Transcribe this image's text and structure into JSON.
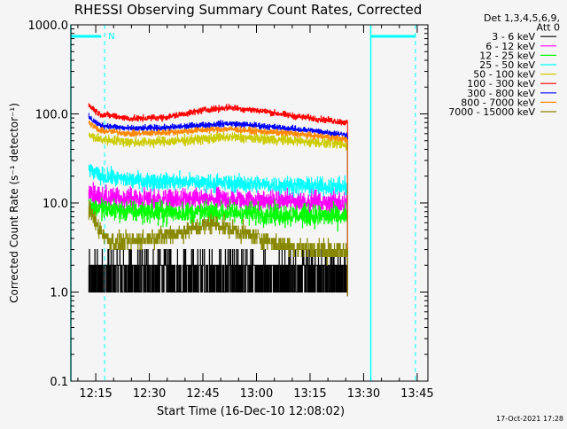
{
  "chart_data": {
    "type": "line",
    "title": "RHESSI Observing Summary Count Rates, Corrected",
    "xlabel": "Start Time (16-Dec-10 12:08:02)",
    "ylabel": "Corrected Count Rate (s⁻¹ detector⁻¹)",
    "y_scale": "log",
    "ylim": [
      0.1,
      1000
    ],
    "xlim": [
      "12:08:02",
      "13:48:00"
    ],
    "y_ticks": [
      {
        "value": 0.1,
        "label": "0.1"
      },
      {
        "value": 1,
        "label": "1.0"
      },
      {
        "value": 10,
        "label": "10.0"
      },
      {
        "value": 100,
        "label": "100.0"
      },
      {
        "value": 1000,
        "label": "1000.0"
      }
    ],
    "x_ticks": [
      "12:15",
      "12:30",
      "12:45",
      "13:00",
      "13:15",
      "13:30",
      "13:45"
    ],
    "grid": false,
    "legend_position": "top-right",
    "legend_header": [
      "Det 1,3,4,5,6,9,",
      "Att 0"
    ],
    "night_marker": {
      "label": "N",
      "start": "12:08:02",
      "end": "12:17:30",
      "color": "#00ffff"
    },
    "dashed_markers": [
      "12:17:30",
      "13:44:30"
    ],
    "solid_markers": [
      "12:08:02",
      "13:32:00"
    ],
    "data_end": "13:25:30",
    "series": [
      {
        "name": "3 - 6 keV",
        "color": "#000000",
        "x": [
          "12:13:00",
          "12:17:00",
          "12:30:00",
          "12:45:00",
          "12:52:00",
          "13:00:00",
          "13:10:00",
          "13:20:00",
          "13:25:00"
        ],
        "y": [
          2.0,
          1.5,
          1.5,
          1.5,
          1.5,
          1.5,
          1.5,
          1.5,
          1.5
        ]
      },
      {
        "name": "6 - 12 keV",
        "color": "#ff00ff",
        "x": [
          "12:13:00",
          "12:16:00",
          "12:25:00",
          "12:35:00",
          "12:45:00",
          "12:55:00",
          "13:05:00",
          "13:15:00",
          "13:25:00"
        ],
        "y": [
          13.0,
          11.5,
          11.0,
          10.8,
          10.8,
          10.9,
          10.5,
          10.3,
          10.0
        ]
      },
      {
        "name": "12 - 25 keV",
        "color": "#00ff00",
        "x": [
          "12:13:00",
          "12:16:00",
          "12:25:00",
          "12:35:00",
          "12:45:00",
          "12:55:00",
          "13:05:00",
          "13:15:00",
          "13:25:00"
        ],
        "y": [
          9.5,
          8.5,
          8.0,
          7.8,
          7.8,
          7.8,
          7.5,
          7.2,
          7.0
        ]
      },
      {
        "name": "25 - 50 keV",
        "color": "#00ffff",
        "x": [
          "12:13:00",
          "12:16:00",
          "12:25:00",
          "12:35:00",
          "12:45:00",
          "12:55:00",
          "13:05:00",
          "13:15:00",
          "13:25:00"
        ],
        "y": [
          24.0,
          20.0,
          18.0,
          17.5,
          17.0,
          16.5,
          16.0,
          15.5,
          15.0
        ]
      },
      {
        "name": "50 - 100 keV",
        "color": "#cccc00",
        "x": [
          "12:13:00",
          "12:16:00",
          "12:25:00",
          "12:35:00",
          "12:45:00",
          "12:52:00",
          "13:00:00",
          "13:10:00",
          "13:20:00",
          "13:25:00"
        ],
        "y": [
          57.0,
          52.0,
          48.0,
          49.0,
          52.0,
          55.0,
          53.0,
          50.0,
          47.0,
          45.0
        ]
      },
      {
        "name": "100 - 300 keV",
        "color": "#ff0000",
        "x": [
          "12:13:00",
          "12:16:00",
          "12:25:00",
          "12:35:00",
          "12:45:00",
          "12:52:00",
          "13:00:00",
          "13:10:00",
          "13:20:00",
          "13:25:00"
        ],
        "y": [
          125.0,
          100.0,
          88.0,
          92.0,
          110.0,
          118.0,
          110.0,
          95.0,
          85.0,
          80.0
        ]
      },
      {
        "name": "300 - 800 keV",
        "color": "#0000ff",
        "x": [
          "12:13:00",
          "12:16:00",
          "12:25:00",
          "12:35:00",
          "12:45:00",
          "12:52:00",
          "13:00:00",
          "13:10:00",
          "13:20:00",
          "13:25:00"
        ],
        "y": [
          92.0,
          75.0,
          68.0,
          70.0,
          75.0,
          78.0,
          74.0,
          68.0,
          62.0,
          58.0
        ]
      },
      {
        "name": "800 - 7000 keV",
        "color": "#ff8800",
        "x": [
          "12:13:00",
          "12:16:00",
          "12:25:00",
          "12:35:00",
          "12:45:00",
          "12:52:00",
          "13:00:00",
          "13:10:00",
          "13:20:00",
          "13:25:00"
        ],
        "y": [
          80.0,
          65.0,
          60.0,
          62.0,
          66.0,
          68.0,
          64.0,
          60.0,
          55.0,
          52.0
        ]
      },
      {
        "name": "7000 - 15000 keV",
        "color": "#888800",
        "x": [
          "12:13:00",
          "12:16:00",
          "12:20:00",
          "12:30:00",
          "12:40:00",
          "12:48:00",
          "12:55:00",
          "13:05:00",
          "13:15:00",
          "13:25:00"
        ],
        "y": [
          8.5,
          5.0,
          3.5,
          4.0,
          4.8,
          6.0,
          4.8,
          3.5,
          3.0,
          2.8
        ]
      }
    ]
  },
  "timestamp": "17-Oct-2021 17:28"
}
